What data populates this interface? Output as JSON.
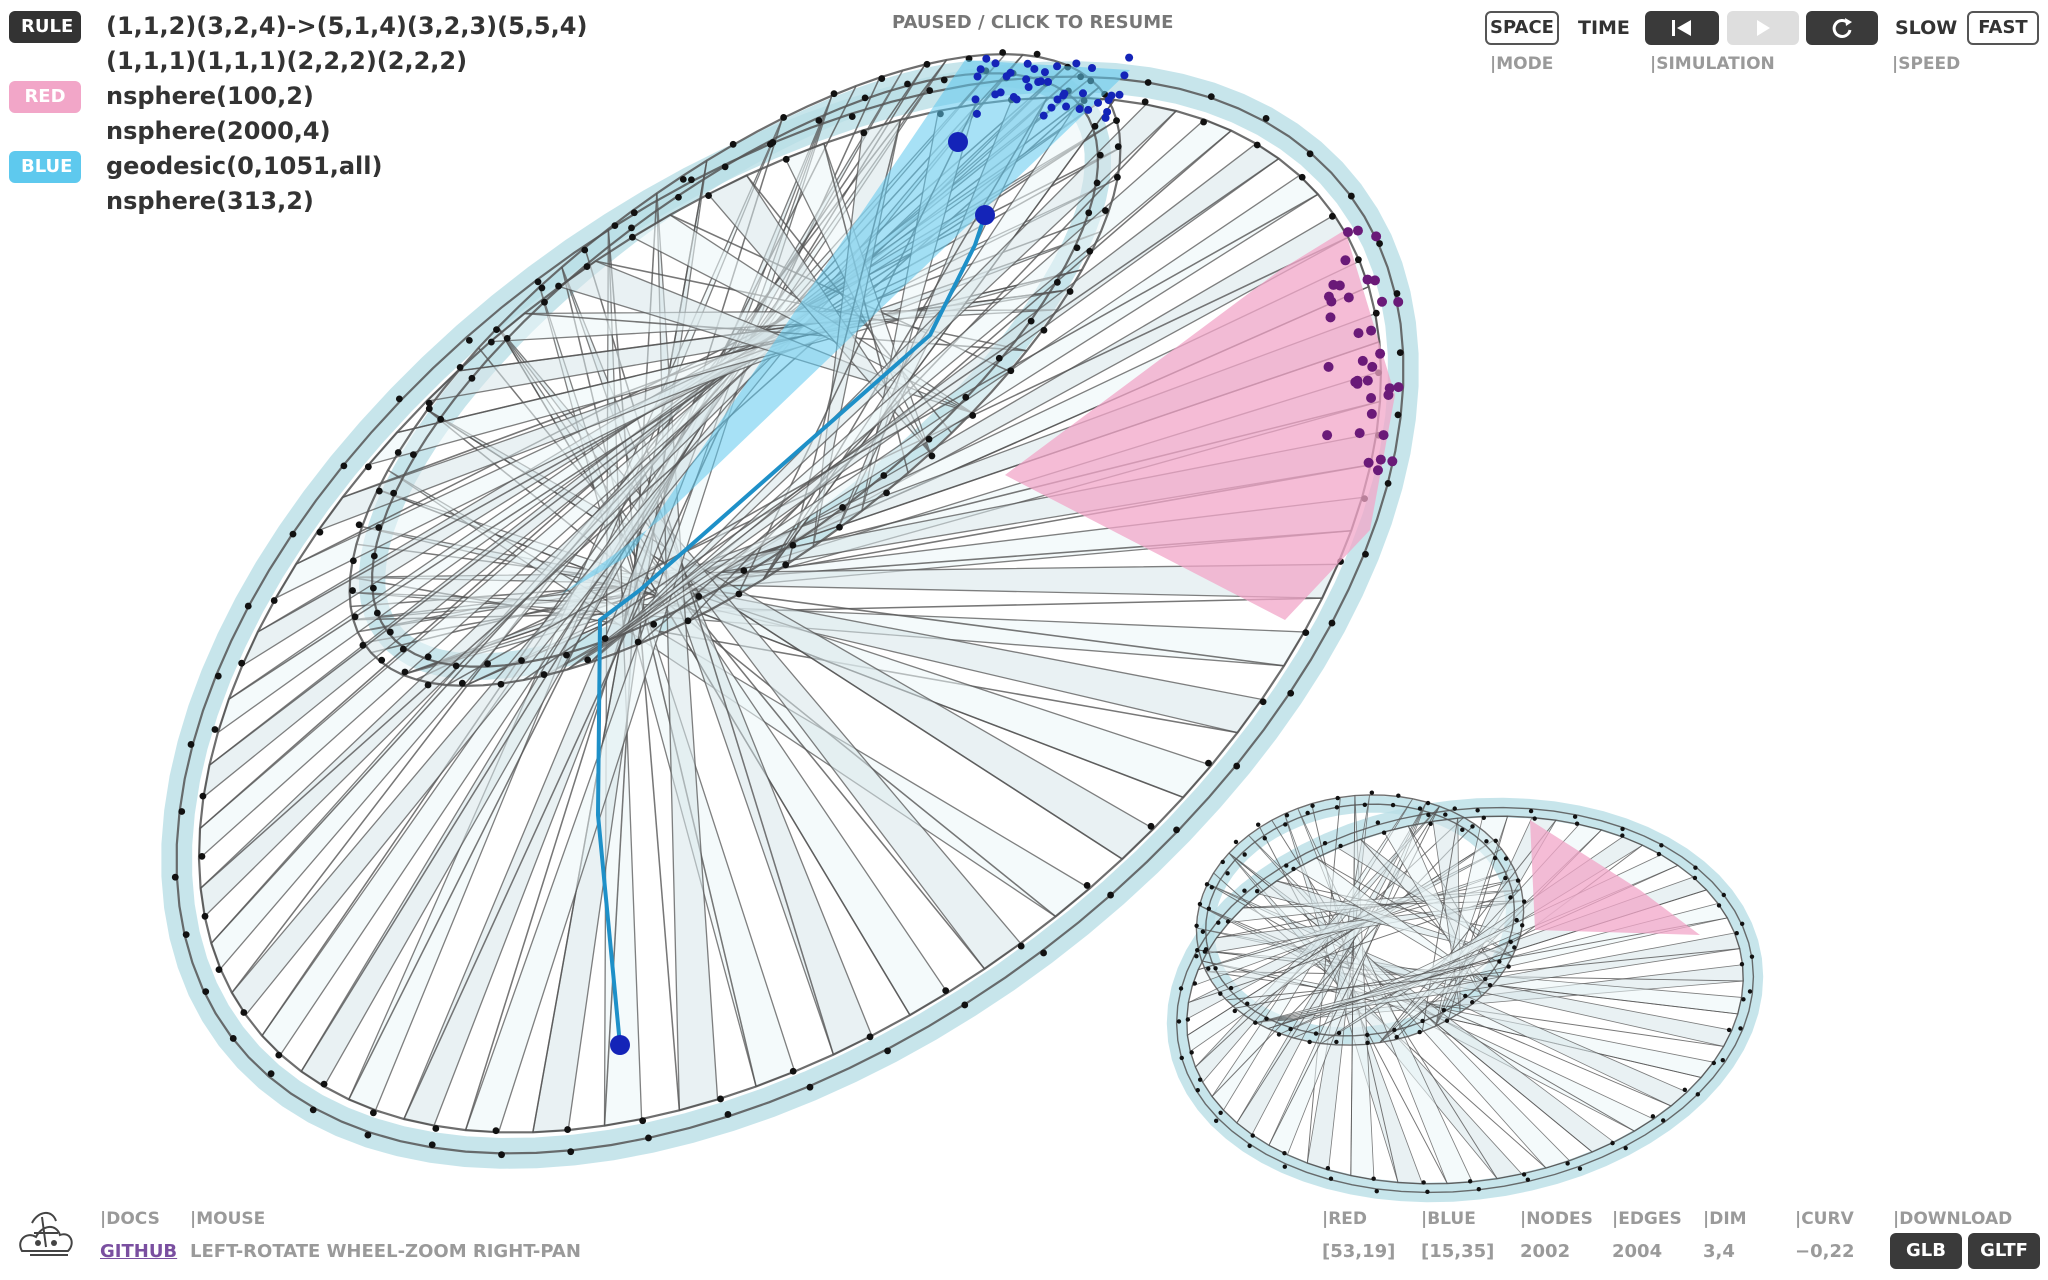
{
  "rule": {
    "badge": "RULE",
    "line1": "(1,1,2)(3,2,4)->(5,1,4)(3,2,3)(5,5,4)",
    "line2": "(1,1,1)(1,1,1)(2,2,2)(2,2,2)"
  },
  "red": {
    "badge": "RED",
    "line1": "nsphere(100,2)",
    "line2": "nsphere(2000,4)",
    "color": "#f2a6c8"
  },
  "blue": {
    "badge": "BLUE",
    "line1": "geodesic(0,1051,all)",
    "line2": "nsphere(313,2)",
    "color": "#5ec9ee"
  },
  "status": "PAUSED / CLICK TO RESUME",
  "controls": {
    "mode_button": "SPACE",
    "mode_toggle": "TIME",
    "mode_caption": "|MODE",
    "simulation_caption": "|SIMULATION",
    "speed_slow": "SLOW",
    "speed_fast": "FAST",
    "speed_caption": "|SPEED",
    "icons": [
      "skip-back-icon",
      "play-icon",
      "restart-icon"
    ]
  },
  "footer": {
    "docs_label": "|DOCS",
    "github_link": "GITHUB",
    "mouse_label": "|MOUSE",
    "mouse_help": "LEFT-ROTATE WHEEL-ZOOM RIGHT-PAN"
  },
  "stats": [
    {
      "label": "|RED",
      "value": "[53,19]"
    },
    {
      "label": "|BLUE",
      "value": "[15,35]"
    },
    {
      "label": "|NODES",
      "value": "2002"
    },
    {
      "label": "|EDGES",
      "value": "2004"
    },
    {
      "label": "|DIM",
      "value": "3,4"
    },
    {
      "label": "|CURV",
      "value": "−0,22"
    }
  ],
  "download": {
    "label": "|DOWNLOAD",
    "glb": "GLB",
    "gltf": "GLTF"
  },
  "colors": {
    "mesh_fill": "#b9dfe6",
    "edge": "#555555",
    "node": "#111111",
    "blue_node": "#1424b8",
    "purple_node": "#6a1a78"
  }
}
